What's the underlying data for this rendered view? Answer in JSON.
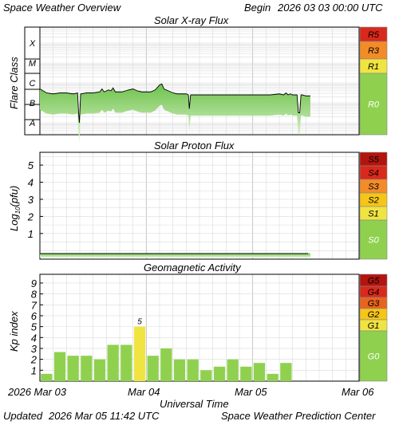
{
  "header": {
    "title": "Space Weather Overview",
    "begin_label": "Begin",
    "begin_date": "2026 03 03 00:00 UTC"
  },
  "footer": {
    "updated_label": "Updated",
    "updated_date": "2026 Mar 05 11:42 UTC",
    "credit": "Space Weather Prediction Center"
  },
  "time_axis": {
    "title": "Universal Time",
    "tick_labels": [
      "2026 Mar 03",
      "Mar 04",
      "Mar 05",
      "Mar 06"
    ],
    "range_hours": [
      0,
      72
    ],
    "ticks_hours": [
      0,
      24,
      48,
      72
    ]
  },
  "colors": {
    "green": "#8fd14f",
    "yellow": "#f0e442",
    "gold": "#f5c518",
    "orange": "#f28c28",
    "darkorange": "#e8641e",
    "red": "#d9291c",
    "darkred": "#b3140e"
  },
  "chart_data": [
    {
      "type": "area",
      "title": "Solar X-ray Flux",
      "ylabel": "Flare Class",
      "y_scale": "log",
      "y_tick_labels": [
        "X",
        "M",
        "C",
        "B",
        "A"
      ],
      "y_tick_values": [
        -4,
        -5,
        -6,
        -7,
        -8
      ],
      "ylim": [
        -8.6,
        -3.2
      ],
      "scale_labels": [
        "R5",
        "R3",
        "R1",
        "R0"
      ],
      "x_hours": [
        0,
        1.5,
        3,
        4.5,
        6,
        7.5,
        8.5,
        8.7,
        8.9,
        9.2,
        10.5,
        12,
        13.5,
        14,
        14.5,
        15.5,
        16,
        16.5,
        17,
        18.5,
        20,
        21,
        22,
        23,
        24,
        25,
        26,
        27,
        27.5,
        28,
        29,
        30,
        31,
        32,
        33,
        33.5,
        33.7,
        34,
        36,
        38,
        40,
        42,
        44,
        46,
        48,
        50,
        52,
        54,
        55,
        55.5,
        56,
        56.5,
        57,
        58,
        58.3,
        58.6,
        58.9,
        59.2,
        60,
        61
      ],
      "values": [
        -6.3,
        -6.5,
        -6.55,
        -6.5,
        -6.5,
        -6.55,
        -6.5,
        -7.4,
        -8.0,
        -6.55,
        -6.5,
        -6.5,
        -6.45,
        -6.3,
        -6.45,
        -6.35,
        -6.4,
        -6.25,
        -6.45,
        -6.45,
        -6.35,
        -6.3,
        -6.4,
        -6.45,
        -6.45,
        -6.45,
        -6.35,
        -6.1,
        -6.05,
        -6.3,
        -6.4,
        -6.5,
        -6.55,
        -6.55,
        -6.55,
        -6.6,
        -7.3,
        -6.6,
        -6.6,
        -6.6,
        -6.6,
        -6.6,
        -6.6,
        -6.6,
        -6.6,
        -6.6,
        -6.6,
        -6.55,
        -6.6,
        -6.5,
        -6.6,
        -6.55,
        -6.6,
        -6.6,
        -7.5,
        -7.5,
        -6.6,
        -6.6,
        -6.65,
        -6.65
      ]
    },
    {
      "type": "area",
      "title": "Solar Proton Flux",
      "ylabel": "Log",
      "ylabel_sub": "10",
      "ylabel_unit": "(pfu)",
      "y_tick_labels": [
        "5",
        "4",
        "3",
        "2",
        "1"
      ],
      "y_tick_values": [
        5,
        4,
        3,
        2,
        1
      ],
      "ylim": [
        -0.5,
        5.75
      ],
      "scale_labels": [
        "S5",
        "S4",
        "S3",
        "S2",
        "S1",
        "S0"
      ],
      "x_hours": [
        0,
        61
      ],
      "values": [
        -0.15,
        -0.15
      ]
    },
    {
      "type": "bar",
      "title": "Geomagnetic Activity",
      "ylabel": "Kp index",
      "y_tick_labels": [
        "9",
        "8",
        "7",
        "6",
        "5",
        "4",
        "3",
        "2",
        "1"
      ],
      "y_tick_values": [
        9,
        8,
        7,
        6,
        5,
        4,
        3,
        2,
        1
      ],
      "ylim": [
        0,
        9.8
      ],
      "bar_width_hours": 3,
      "values": [
        0.67,
        2.67,
        2.33,
        2.33,
        2.0,
        3.33,
        3.33,
        5.0,
        2.33,
        3.0,
        2.0,
        2.0,
        1.0,
        1.33,
        2.0,
        1.33,
        1.67,
        0.67,
        1.67
      ],
      "highlight_label": "5",
      "highlight_index": 7,
      "scale_labels": [
        "G5",
        "G4",
        "G3",
        "G2",
        "G1",
        "G0"
      ]
    }
  ]
}
